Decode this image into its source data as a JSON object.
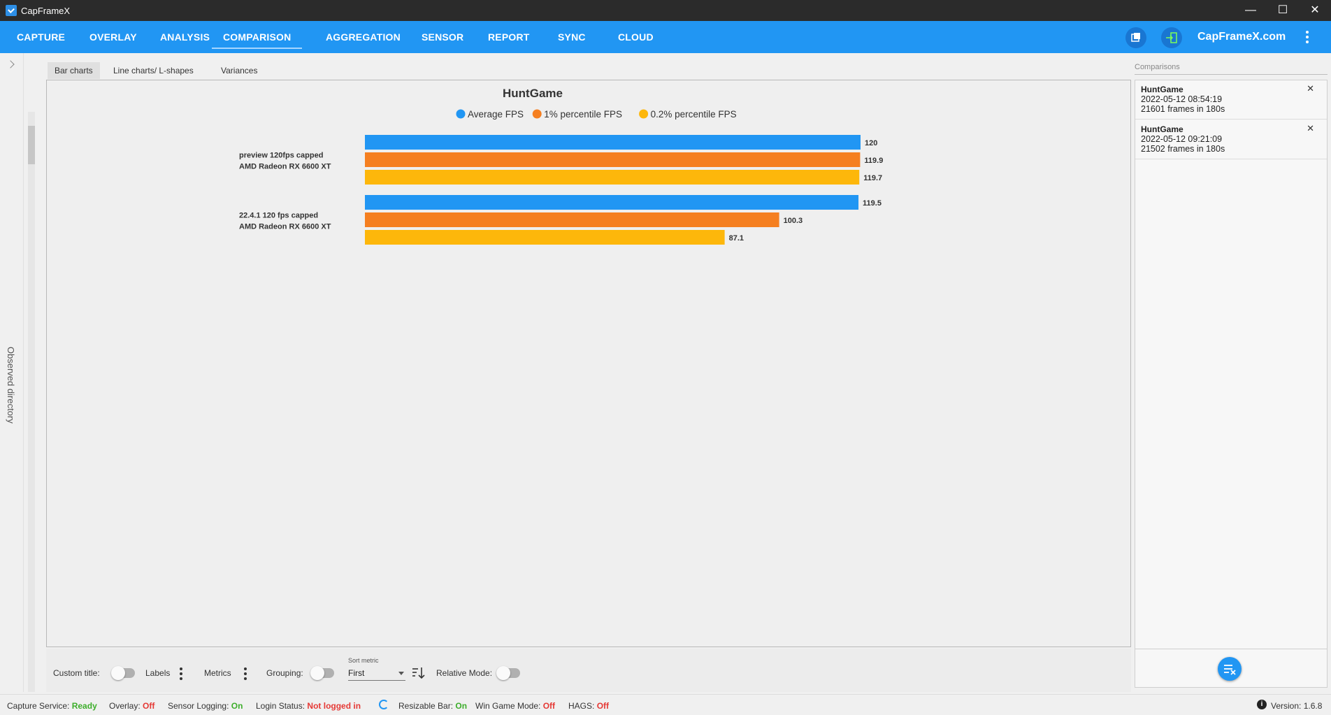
{
  "window": {
    "title": "CapFrameX",
    "minimize": "—",
    "maximize": "☐",
    "close": "✕"
  },
  "nav": {
    "tabs": [
      {
        "label": "CAPTURE"
      },
      {
        "label": "OVERLAY"
      },
      {
        "label": "ANALYSIS"
      },
      {
        "label": "COMPARISON"
      },
      {
        "label": "AGGREGATION"
      },
      {
        "label": "SENSOR"
      },
      {
        "label": "REPORT"
      },
      {
        "label": "SYNC"
      },
      {
        "label": "CLOUD"
      }
    ],
    "active": "COMPARISON",
    "brand": "CapFrameX.com"
  },
  "sidebar": {
    "label": "Observed directory"
  },
  "subtabs": [
    {
      "label": "Bar charts"
    },
    {
      "label": "Line charts/ L-shapes"
    },
    {
      "label": "Variances"
    }
  ],
  "chart_data": {
    "type": "bar",
    "orientation": "horizontal",
    "title": "HuntGame",
    "categories": [
      [
        "preview 120fps capped",
        "AMD Radeon RX 6600 XT"
      ],
      [
        "22.4.1 120 fps capped",
        "AMD Radeon RX 6600 XT"
      ]
    ],
    "series": [
      {
        "name": "Average FPS",
        "color": "#2196f3",
        "values": [
          120,
          119.5
        ]
      },
      {
        "name": "1% percentile FPS",
        "color": "#f57f20",
        "values": [
          119.9,
          100.3
        ]
      },
      {
        "name": "0.2% percentile FPS",
        "color": "#fdb70b",
        "values": [
          119.7,
          87.1
        ]
      }
    ],
    "value_labels": [
      [
        "120",
        "119.9",
        "119.7"
      ],
      [
        "119.5",
        "100.3",
        "87.1"
      ]
    ],
    "xlim": [
      0,
      120
    ],
    "legend": "top",
    "grid": false
  },
  "bottom": {
    "custom_title": "Custom title:",
    "labels": "Labels",
    "metrics": "Metrics",
    "grouping": "Grouping:",
    "sort_caption": "Sort metric",
    "sort_value": "First",
    "relative_mode": "Relative Mode:"
  },
  "comparisons": {
    "header": "Comparisons",
    "items": [
      {
        "name": "HuntGame",
        "date": "2022-05-12 08:54:19",
        "frames": "21601 frames in 180s"
      },
      {
        "name": "HuntGame",
        "date": "2022-05-12 09:21:09",
        "frames": "21502 frames in 180s"
      }
    ],
    "close_glyph": "✕"
  },
  "status": {
    "capture_service_label": "Capture Service:",
    "capture_service_value": "Ready",
    "overlay_label": "Overlay:",
    "overlay_value": "Off",
    "sensor_label": "Sensor Logging:",
    "sensor_value": "On",
    "login_label": "Login Status:",
    "login_value": "Not logged in",
    "resizable_label": "Resizable Bar:",
    "resizable_value": "On",
    "wgm_label": "Win Game Mode:",
    "wgm_value": "Off",
    "hags_label": "HAGS:",
    "hags_value": "Off",
    "version_label": "Version:",
    "version_value": "1.6.8"
  },
  "icons": {
    "app": "capframex-logo-icon",
    "nav_left": "screenshot-icon",
    "nav_right": "login-icon",
    "menu": "kebab-menu-icon",
    "clear": "clear-list-icon",
    "sort": "sort-direction-icon",
    "info": "info-icon",
    "sync": "refresh-icon"
  }
}
